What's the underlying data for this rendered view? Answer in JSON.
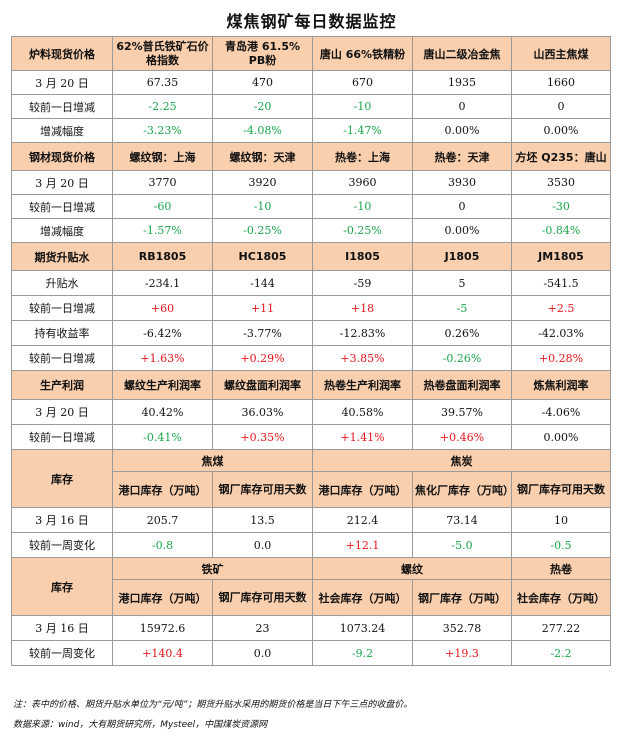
{
  "title": "煤焦钢矿每日数据监控",
  "raw": {
    "header": [
      "炉料现货价格",
      "62%普氏铁矿石价格指数",
      "青岛港 61.5% PB粉",
      "唐山 66%铁精粉",
      "唐山二级冶金焦",
      "山西主焦煤"
    ],
    "rows": [
      [
        "3 月 20 日",
        "67.35",
        "470",
        "670",
        "1935",
        "1660"
      ],
      [
        "较前一日增减",
        "-2.25",
        "-20",
        "-10",
        "0",
        "0"
      ],
      [
        "增减幅度",
        "-3.23%",
        "-4.08%",
        "-1.47%",
        "0.00%",
        "0.00%"
      ]
    ]
  },
  "steel": {
    "header": [
      "钢材现货价格",
      "螺纹钢：上海",
      "螺纹钢：天津",
      "热卷：上海",
      "热卷：天津",
      "方坯 Q235：唐山"
    ],
    "rows": [
      [
        "3 月 20 日",
        "3770",
        "3920",
        "3960",
        "3930",
        "3530"
      ],
      [
        "较前一日增减",
        "-60",
        "-10",
        "-10",
        "0",
        "-30"
      ],
      [
        "增减幅度",
        "-1.57%",
        "-0.25%",
        "-0.25%",
        "0.00%",
        "-0.84%"
      ]
    ]
  },
  "futures": {
    "header": [
      "期货升贴水",
      "RB1805",
      "HC1805",
      "I1805",
      "J1805",
      "JM1805"
    ],
    "rows": [
      [
        "升贴水",
        "-234.1",
        "-144",
        "-59",
        "5",
        "-541.5"
      ],
      [
        "较前一日增减",
        "+60",
        "+11",
        "+18",
        "-5",
        "+2.5"
      ],
      [
        "持有收益率",
        "-6.42%",
        "-3.77%",
        "-12.83%",
        "0.26%",
        "-42.03%"
      ],
      [
        "较前一日增减",
        "+1.63%",
        "+0.29%",
        "+3.85%",
        "-0.26%",
        "+0.28%"
      ]
    ]
  },
  "profit": {
    "header": [
      "生产利润",
      "螺纹生产利润率",
      "螺纹盘面利润率",
      "热卷生产利润率",
      "热卷盘面利润率",
      "炼焦利润率"
    ],
    "rows": [
      [
        "3 月 20 日",
        "40.42%",
        "36.03%",
        "40.58%",
        "39.57%",
        "-4.06%"
      ],
      [
        "较前一日增减",
        "-0.41%",
        "+0.35%",
        "+1.41%",
        "+0.46%",
        "0.00%"
      ]
    ]
  },
  "inv1": {
    "label": "库存",
    "group1": "焦煤",
    "group2": "焦炭",
    "sub": [
      "港口库存（万吨）",
      "钢厂库存可用天数",
      "港口库存（万吨）",
      "焦化厂库存（万吨）",
      "钢厂库存可用天数"
    ],
    "rows": [
      [
        "3 月 16 日",
        "205.7",
        "13.5",
        "212.4",
        "73.14",
        "10"
      ],
      [
        "较前一周变化",
        "-0.8",
        "0.0",
        "+12.1",
        "-5.0",
        "-0.5"
      ]
    ]
  },
  "inv2": {
    "label": "库存",
    "group1": "铁矿",
    "group2": "螺纹",
    "group3": "热卷",
    "sub": [
      "港口库存（万吨）",
      "钢厂库存可用天数",
      "社会库存（万吨）",
      "钢厂库存（万吨）",
      "社会库存（万吨）"
    ],
    "rows": [
      [
        "3 月 16 日",
        "15972.6",
        "23",
        "1073.24",
        "352.78",
        "277.22"
      ],
      [
        "较前一周变化",
        "+140.4",
        "0.0",
        "-9.2",
        "+19.3",
        "-2.2"
      ]
    ]
  },
  "notes": {
    "note1": "注：表中的价格、期货升贴水单位为“元/吨”；期货升贴水采用的期货价格是当日下午三点的收盘价。",
    "note2": "数据来源：wind，大有期货研究所，Mysteel，中国煤炭资源网"
  },
  "colors": {
    "header_bg": "#f9cfae",
    "up": "#e8141b",
    "down": "#1aa64a",
    "border": "#9a9a9a"
  }
}
